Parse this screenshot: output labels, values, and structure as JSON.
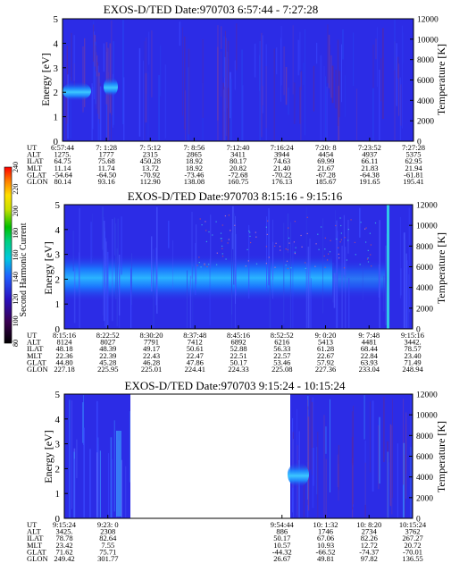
{
  "colorbar": {
    "label": "Second Harmonic Current",
    "ticks": [
      "240",
      "220",
      "200",
      "180",
      "160",
      "140",
      "120",
      "100",
      "80"
    ]
  },
  "chart_data": [
    {
      "type": "heatmap",
      "title": "EXOS-D/TED  Date:970703  6:57:44 - 7:27:28",
      "ylabel": "Energy [eV]",
      "y2label": "Temperature [K]",
      "ylim": [
        0,
        5
      ],
      "y2lim": [
        0,
        12000
      ],
      "yticks": [
        "0",
        "1",
        "2",
        "3",
        "4",
        "5"
      ],
      "y2ticks": [
        "0",
        "2000",
        "4000",
        "6000",
        "8000",
        "10000",
        "12000"
      ],
      "row_labels": [
        "UT",
        "ALT",
        "ILAT",
        "MLT",
        "GLAT",
        "GLON"
      ],
      "columns": [
        {
          "UT": "6:57:44",
          "ALT": "1275.",
          "ILAT": "64.75",
          "MLT": "11.14",
          "GLAT": "-54.64",
          "GLON": "80.14"
        },
        {
          "UT": "7: 1:28",
          "ALT": "1777",
          "ILAT": "75.68",
          "MLT": "11.74",
          "GLAT": "-64.50",
          "GLON": "93.16"
        },
        {
          "UT": "7: 5:12",
          "ALT": "2315",
          "ILAT": "450.28",
          "MLT": "13.72",
          "GLAT": "-70.92",
          "GLON": "112.90"
        },
        {
          "UT": "7: 8:56",
          "ALT": "2865",
          "ILAT": "18.92",
          "MLT": "18.92",
          "GLAT": "-73.46",
          "GLON": "138.08"
        },
        {
          "UT": "7:12:40",
          "ALT": "3411",
          "ILAT": "80.17",
          "MLT": "20.82",
          "GLAT": "-72.68",
          "GLON": "160.75"
        },
        {
          "UT": "7:16:24",
          "ALT": "3944",
          "ILAT": "74.63",
          "MLT": "21.40",
          "GLAT": "-70.22",
          "GLON": "176.13"
        },
        {
          "UT": "7:20: 8",
          "ALT": "4454",
          "ILAT": "69.99",
          "MLT": "21.67",
          "GLAT": "-67.28",
          "GLON": "185.67"
        },
        {
          "UT": "7:23:52",
          "ALT": "4937",
          "ILAT": "66.11",
          "MLT": "21.83",
          "GLAT": "-64.38",
          "GLON": "191.65"
        },
        {
          "UT": "7:27:28",
          "ALT": "5375",
          "ILAT": "62.95",
          "MLT": "21.94",
          "GLAT": "-61.81",
          "GLON": "195.41"
        }
      ]
    },
    {
      "type": "heatmap",
      "title": "EXOS-D/TED  Date:970703  8:15:16 - 9:15:16",
      "ylabel": "Energy [eV]",
      "y2label": "Temperature [K]",
      "ylim": [
        0,
        5
      ],
      "y2lim": [
        0,
        12000
      ],
      "yticks": [
        "0",
        "1",
        "2",
        "3",
        "4",
        "5"
      ],
      "y2ticks": [
        "0",
        "2000",
        "4000",
        "6000",
        "8000",
        "10000",
        "12000"
      ],
      "row_labels": [
        "UT",
        "ALT",
        "ILAT",
        "MLT",
        "GLAT",
        "GLON"
      ],
      "columns": [
        {
          "UT": "8:15:16",
          "ALT": "8124",
          "ILAT": "48.18",
          "MLT": "22.36",
          "GLAT": "44.80",
          "GLON": "227.18"
        },
        {
          "UT": "8:22:52",
          "ALT": "8027",
          "ILAT": "48.39",
          "MLT": "22.39",
          "GLAT": "45.28",
          "GLON": "225.95"
        },
        {
          "UT": "8:30:20",
          "ALT": "7791",
          "ILAT": "49.17",
          "MLT": "22.43",
          "GLAT": "46.28",
          "GLON": "225.01"
        },
        {
          "UT": "8:37:48",
          "ALT": "7412",
          "ILAT": "50.61",
          "MLT": "22.47",
          "GLAT": "47.86",
          "GLON": "224.41"
        },
        {
          "UT": "8:45:16",
          "ALT": "6892",
          "ILAT": "52.88",
          "MLT": "22.51",
          "GLAT": "50.17",
          "GLON": "224.33"
        },
        {
          "UT": "8:52:52",
          "ALT": "6216",
          "ILAT": "56.33",
          "MLT": "22.57",
          "GLAT": "53.46",
          "GLON": "225.08"
        },
        {
          "UT": "9: 0:20",
          "ALT": "5413",
          "ILAT": "61.28",
          "MLT": "22.67",
          "GLAT": "57.92",
          "GLON": "227.36"
        },
        {
          "UT": "9: 7:48",
          "ALT": "4481",
          "ILAT": "68.44",
          "MLT": "22.84",
          "GLAT": "63.93",
          "GLON": "233.04"
        },
        {
          "UT": "9:15:16",
          "ALT": "3442.",
          "ILAT": "78.57",
          "MLT": "23.40",
          "GLAT": "71.49",
          "GLON": "248.94"
        }
      ]
    },
    {
      "type": "heatmap",
      "title": "EXOS-D/TED  Date:970703  9:15:24 - 10:15:24",
      "ylabel": "Energy [eV]",
      "y2label": "Temperature [K]",
      "ylim": [
        0,
        5
      ],
      "y2lim": [
        0,
        12000
      ],
      "yticks": [
        "0",
        "1",
        "2",
        "3",
        "4",
        "5"
      ],
      "y2ticks": [
        "0",
        "2000",
        "4000",
        "6000",
        "8000",
        "10000",
        "12000"
      ],
      "row_labels": [
        "UT",
        "ALT",
        "ILAT",
        "MLT",
        "GLAT",
        "GLON"
      ],
      "columns": [
        {
          "UT": "9:15:24",
          "ALT": "3425.",
          "ILAT": "78.78",
          "MLT": "23.42",
          "GLAT": "71.62",
          "GLON": "249.42"
        },
        {
          "UT": "9:23: 0",
          "ALT": "2308",
          "ILAT": "82.64",
          "MLT": "7.55",
          "GLAT": "75.71",
          "GLON": "301.77"
        },
        {
          "UT": "",
          "ALT": "",
          "ILAT": "",
          "MLT": "",
          "GLAT": "",
          "GLON": ""
        },
        {
          "UT": "",
          "ALT": "",
          "ILAT": "",
          "MLT": "",
          "GLAT": "",
          "GLON": ""
        },
        {
          "UT": "",
          "ALT": "",
          "ILAT": "",
          "MLT": "",
          "GLAT": "",
          "GLON": ""
        },
        {
          "UT": "9:54:44",
          "ALT": "886",
          "ILAT": "50.17",
          "MLT": "10.57",
          "GLAT": "-44.32",
          "GLON": "26.67"
        },
        {
          "UT": "10: 1:32",
          "ALT": "1746",
          "ILAT": "67.06",
          "MLT": "10.93",
          "GLAT": "-66.52",
          "GLON": "49.81"
        },
        {
          "UT": "10: 8:20",
          "ALT": "2734",
          "ILAT": "82.26",
          "MLT": "12.72",
          "GLAT": "-74.37",
          "GLON": "97.82"
        },
        {
          "UT": "10:15:24",
          "ALT": "3762",
          "ILAT": "267.27",
          "MLT": "20.72",
          "GLAT": "-70.01",
          "GLON": "136.55"
        }
      ]
    }
  ]
}
